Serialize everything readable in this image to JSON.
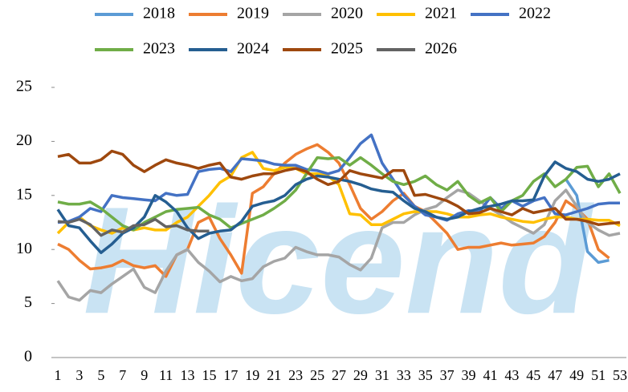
{
  "chart_data": {
    "type": "line",
    "watermark": "Hicend",
    "legend": "top",
    "categories": [
      1,
      null,
      3,
      null,
      5,
      null,
      7,
      null,
      9,
      null,
      11,
      null,
      13,
      null,
      15,
      null,
      17,
      null,
      19,
      null,
      21,
      null,
      23,
      null,
      25,
      null,
      27,
      null,
      29,
      null,
      31,
      null,
      33,
      null,
      35,
      null,
      37,
      null,
      39,
      null,
      41,
      null,
      43,
      null,
      45,
      null,
      47,
      null,
      49,
      null,
      51,
      null,
      53
    ],
    "ylim": [
      0,
      25
    ],
    "yticks": [
      0,
      5,
      10,
      15,
      20,
      25
    ],
    "series": [
      {
        "name": "2018",
        "color": "#5b9bd5",
        "values": [
          null,
          null,
          null,
          null,
          null,
          null,
          null,
          null,
          null,
          null,
          null,
          null,
          null,
          null,
          null,
          null,
          null,
          null,
          null,
          null,
          null,
          null,
          null,
          null,
          null,
          null,
          null,
          null,
          null,
          null,
          null,
          null,
          null,
          null,
          null,
          null,
          null,
          null,
          null,
          null,
          null,
          null,
          null,
          null,
          null,
          null,
          null,
          16.5,
          15,
          9.8,
          8.8,
          9.0,
          null
        ]
      },
      {
        "name": "2019",
        "color": "#ed7d31",
        "values": [
          10.5,
          10.0,
          9.0,
          8.2,
          8.3,
          8.5,
          9.0,
          8.5,
          8.3,
          8.5,
          7.5,
          9.5,
          10.0,
          12.5,
          13.0,
          11.0,
          9.5,
          7.8,
          15.2,
          15.8,
          17.0,
          18.0,
          18.8,
          19.3,
          19.7,
          19.0,
          18.0,
          16.0,
          13.8,
          12.8,
          13.5,
          14.5,
          15.2,
          14.0,
          13.5,
          12.5,
          11.5,
          10.0,
          10.2,
          10.2,
          10.4,
          10.6,
          10.4,
          10.5,
          10.6,
          11.2,
          12.5,
          14.5,
          13.8,
          12.8,
          10.0,
          9.2,
          null
        ]
      },
      {
        "name": "2020",
        "color": "#a5a5a5",
        "values": [
          7.1,
          5.6,
          5.3,
          6.2,
          6.0,
          6.8,
          7.5,
          8.2,
          6.5,
          6.0,
          8.0,
          9.5,
          10.0,
          8.8,
          8.0,
          7.0,
          7.5,
          7.1,
          7.3,
          8.4,
          8.9,
          9.2,
          10.2,
          9.8,
          9.5,
          9.5,
          9.3,
          8.6,
          8.1,
          9.2,
          12.0,
          12.5,
          12.5,
          13.2,
          13.7,
          14.0,
          14.8,
          15.5,
          15.2,
          14.5,
          13.8,
          13.2,
          12.5,
          12.0,
          11.5,
          12.3,
          14.5,
          15.5,
          14.0,
          12.5,
          11.8,
          11.3,
          11.5
        ]
      },
      {
        "name": "2021",
        "color": "#ffc000",
        "values": [
          11.5,
          12.5,
          13.0,
          12.2,
          11.8,
          11.5,
          12.0,
          11.8,
          12.0,
          11.8,
          11.8,
          12.5,
          13.0,
          14.0,
          15.0,
          16.2,
          16.8,
          18.5,
          19.0,
          17.5,
          17.3,
          17.6,
          17.5,
          17.0,
          17.0,
          16.8,
          16.0,
          13.3,
          13.2,
          12.3,
          12.3,
          12.8,
          13.3,
          13.5,
          13.5,
          13.5,
          13.3,
          13.0,
          13.0,
          13.2,
          13.3,
          13.0,
          12.8,
          12.6,
          12.5,
          12.8,
          13.0,
          13.0,
          12.8,
          12.8,
          12.7,
          12.7,
          12.2
        ]
      },
      {
        "name": "2022",
        "color": "#4472c4",
        "values": [
          12.5,
          12.6,
          13.0,
          13.8,
          13.5,
          15.0,
          14.8,
          14.7,
          14.6,
          14.5,
          15.2,
          15.0,
          15.1,
          17.2,
          17.4,
          17.5,
          17.2,
          18.4,
          18.3,
          18.2,
          17.9,
          17.8,
          17.8,
          17.4,
          17.3,
          17.0,
          17.3,
          18.5,
          19.8,
          20.6,
          18.0,
          16.5,
          15.0,
          14.0,
          13.2,
          13.0,
          12.7,
          13.3,
          13.6,
          13.5,
          14.8,
          13.8,
          14.5,
          14.0,
          14.5,
          14.8,
          13.3,
          13.2,
          13.5,
          13.8,
          14.2,
          14.3,
          14.3
        ]
      },
      {
        "name": "2023",
        "color": "#70ad47",
        "values": [
          14.4,
          14.2,
          14.2,
          14.4,
          13.8,
          13.0,
          12.2,
          11.8,
          12.5,
          13.0,
          13.5,
          13.7,
          13.8,
          13.9,
          13.2,
          12.8,
          12.0,
          12.4,
          12.8,
          13.2,
          13.8,
          14.5,
          15.5,
          17.0,
          18.5,
          18.4,
          18.5,
          17.8,
          18.5,
          17.8,
          17.0,
          16.3,
          16.0,
          16.3,
          16.8,
          16.0,
          15.5,
          16.3,
          15.0,
          14.3,
          14.8,
          13.5,
          14.5,
          15.0,
          16.3,
          17.0,
          15.8,
          16.5,
          17.6,
          17.7,
          15.8,
          17.0,
          15.2
        ]
      },
      {
        "name": "2024",
        "color": "#255e91",
        "values": [
          13.7,
          12.2,
          12.0,
          10.8,
          9.7,
          10.5,
          11.5,
          12.0,
          13.0,
          15.0,
          14.4,
          13.5,
          12.0,
          11.0,
          11.5,
          11.7,
          11.8,
          12.6,
          14.0,
          14.3,
          14.5,
          15.0,
          16.0,
          16.5,
          16.8,
          16.7,
          16.5,
          16.3,
          16.0,
          15.6,
          15.4,
          15.3,
          14.5,
          13.8,
          13.5,
          13.0,
          12.8,
          13.0,
          13.5,
          13.8,
          14.0,
          14.2,
          14.5,
          14.5,
          14.6,
          16.8,
          18.1,
          17.5,
          17.2,
          16.5,
          16.3,
          16.5,
          17.0
        ]
      },
      {
        "name": "2025",
        "color": "#9e480e",
        "values": [
          18.6,
          18.8,
          18.0,
          18.0,
          18.3,
          19.1,
          18.8,
          17.8,
          17.2,
          17.8,
          18.3,
          18.0,
          17.8,
          17.5,
          17.8,
          18.0,
          16.7,
          16.5,
          16.8,
          17.0,
          17.0,
          17.3,
          17.5,
          17.2,
          16.5,
          16.0,
          16.3,
          17.3,
          17.0,
          16.8,
          16.6,
          17.3,
          17.3,
          15.0,
          15.1,
          14.8,
          14.5,
          14.0,
          13.3,
          13.4,
          13.8,
          13.5,
          13.2,
          13.8,
          13.4,
          13.6,
          13.8,
          12.8,
          12.8,
          12.6,
          12.3,
          12.4,
          12.5
        ]
      },
      {
        "name": "2026",
        "color": "#636363",
        "values": [
          12.6,
          12.5,
          12.8,
          12.3,
          11.3,
          11.8,
          11.6,
          12.2,
          12.3,
          12.8,
          12.1,
          12.2,
          11.8,
          11.7,
          11.7,
          null,
          null,
          null,
          null,
          null,
          null,
          null,
          null,
          null,
          null,
          null,
          null,
          null,
          null,
          null,
          null,
          null,
          null,
          null,
          null,
          null,
          null,
          null,
          null,
          null,
          null,
          null,
          null,
          null,
          null,
          null,
          null,
          null,
          null,
          null,
          null,
          null,
          null
        ]
      }
    ]
  }
}
